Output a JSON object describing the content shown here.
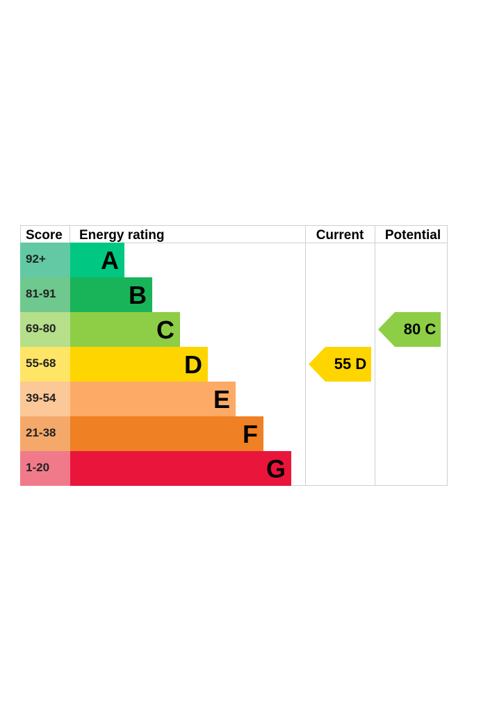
{
  "headers": {
    "score": "Score",
    "rating": "Energy rating",
    "current": "Current",
    "potential": "Potential"
  },
  "chart_data": {
    "type": "bar",
    "bands": [
      {
        "letter": "A",
        "score": "92+",
        "color": "#00c781",
        "score_bg": "#62c9a4"
      },
      {
        "letter": "B",
        "score": "81-91",
        "color": "#19b459",
        "score_bg": "#6fc88e"
      },
      {
        "letter": "C",
        "score": "69-80",
        "color": "#8dce46",
        "score_bg": "#b5df8a"
      },
      {
        "letter": "D",
        "score": "55-68",
        "color": "#ffd500",
        "score_bg": "#ffe566"
      },
      {
        "letter": "E",
        "score": "39-54",
        "color": "#fcaa65",
        "score_bg": "#fdc897"
      },
      {
        "letter": "F",
        "score": "21-38",
        "color": "#ef8023",
        "score_bg": "#f4a96a"
      },
      {
        "letter": "G",
        "score": "1-20",
        "color": "#e9153b",
        "score_bg": "#f07a8a"
      }
    ],
    "current": {
      "value": 55,
      "band": "D",
      "color": "#ffd500",
      "label": "55 D"
    },
    "potential": {
      "value": 80,
      "band": "C",
      "color": "#8dce46",
      "label": "80 C"
    }
  }
}
